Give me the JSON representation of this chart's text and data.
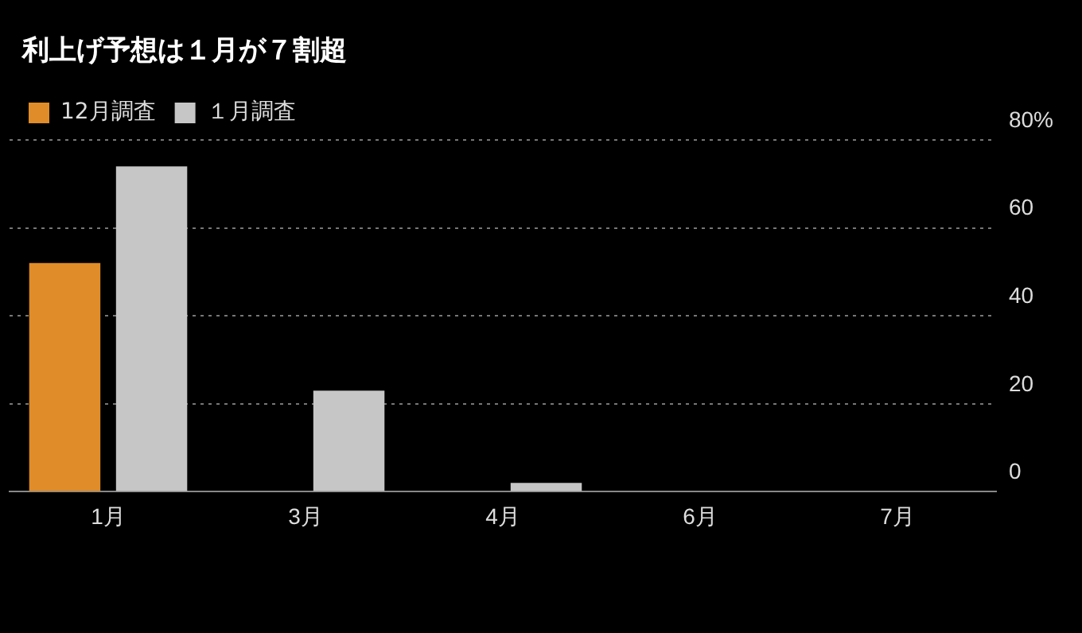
{
  "chart_data": {
    "type": "bar",
    "title": "利上げ予想は１月が７割超",
    "categories": [
      "1月",
      "3月",
      "4月",
      "6月",
      "7月"
    ],
    "series": [
      {
        "name": "12月調査",
        "color": "#e08c28",
        "values": [
          52,
          0,
          0,
          0,
          0
        ]
      },
      {
        "name": "１月調査",
        "color": "#c6c6c6",
        "values": [
          74,
          23,
          2,
          0,
          0
        ]
      }
    ],
    "ylim": [
      0,
      80
    ],
    "yticks": [
      0,
      20,
      40,
      60,
      {
        "value": 80,
        "label": "80%"
      }
    ],
    "grid": "y",
    "legend": "top left"
  }
}
